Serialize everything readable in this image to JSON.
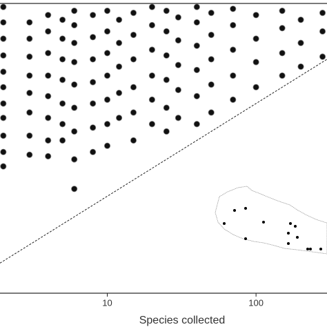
{
  "chart_data": {
    "type": "scatter",
    "x_label": "Species collected",
    "x": [
      2,
      2,
      2,
      2,
      2,
      2,
      2,
      2,
      2,
      2,
      2,
      3,
      3,
      3,
      3,
      3,
      3,
      3,
      3,
      4,
      4,
      4,
      4,
      4,
      4,
      4,
      4,
      5,
      5,
      5,
      5,
      5,
      5,
      5,
      6,
      6,
      6,
      6,
      6,
      6,
      6,
      6,
      6,
      8,
      8,
      8,
      8,
      8,
      8,
      8,
      10,
      10,
      10,
      10,
      10,
      10,
      10,
      12,
      12,
      12,
      12,
      12,
      15,
      15,
      15,
      15,
      15,
      15,
      20,
      20,
      20,
      20,
      20,
      20,
      25,
      25,
      25,
      25,
      25,
      25,
      30,
      30,
      30,
      30,
      30,
      40,
      40,
      40,
      40,
      40,
      40,
      50,
      50,
      50,
      50,
      50,
      70,
      70,
      70,
      70,
      70,
      100,
      100,
      100,
      100,
      150,
      150,
      150,
      150,
      200,
      200,
      200,
      280,
      280,
      280
    ],
    "y": [
      21,
      30,
      45,
      70,
      100,
      150,
      220,
      330,
      500,
      750,
      1100,
      28,
      45,
      80,
      130,
      200,
      320,
      500,
      750,
      27,
      40,
      70,
      120,
      200,
      350,
      600,
      900,
      40,
      60,
      100,
      180,
      300,
      500,
      800,
      12,
      25,
      50,
      90,
      160,
      280,
      450,
      700,
      1000,
      30,
      55,
      100,
      170,
      300,
      520,
      900,
      35,
      60,
      110,
      200,
      350,
      600,
      1000,
      70,
      130,
      250,
      450,
      800,
      40,
      80,
      150,
      300,
      550,
      950,
      60,
      110,
      200,
      380,
      700,
      1100,
      50,
      90,
      180,
      330,
      600,
      1000,
      70,
      140,
      260,
      480,
      850,
      60,
      120,
      230,
      420,
      750,
      1100,
      80,
      160,
      300,
      550,
      950,
      110,
      200,
      380,
      700,
      1050,
      150,
      280,
      500,
      900,
      200,
      350,
      650,
      1000,
      250,
      450,
      800,
      320,
      600,
      950
    ],
    "color": "#111111",
    "xlim": [
      1.9,
      300
    ],
    "ylim": [
      0.9,
      1200
    ],
    "xticks": [
      10,
      100
    ],
    "log_x": true,
    "log_y": true,
    "diagonal": true
  }
}
